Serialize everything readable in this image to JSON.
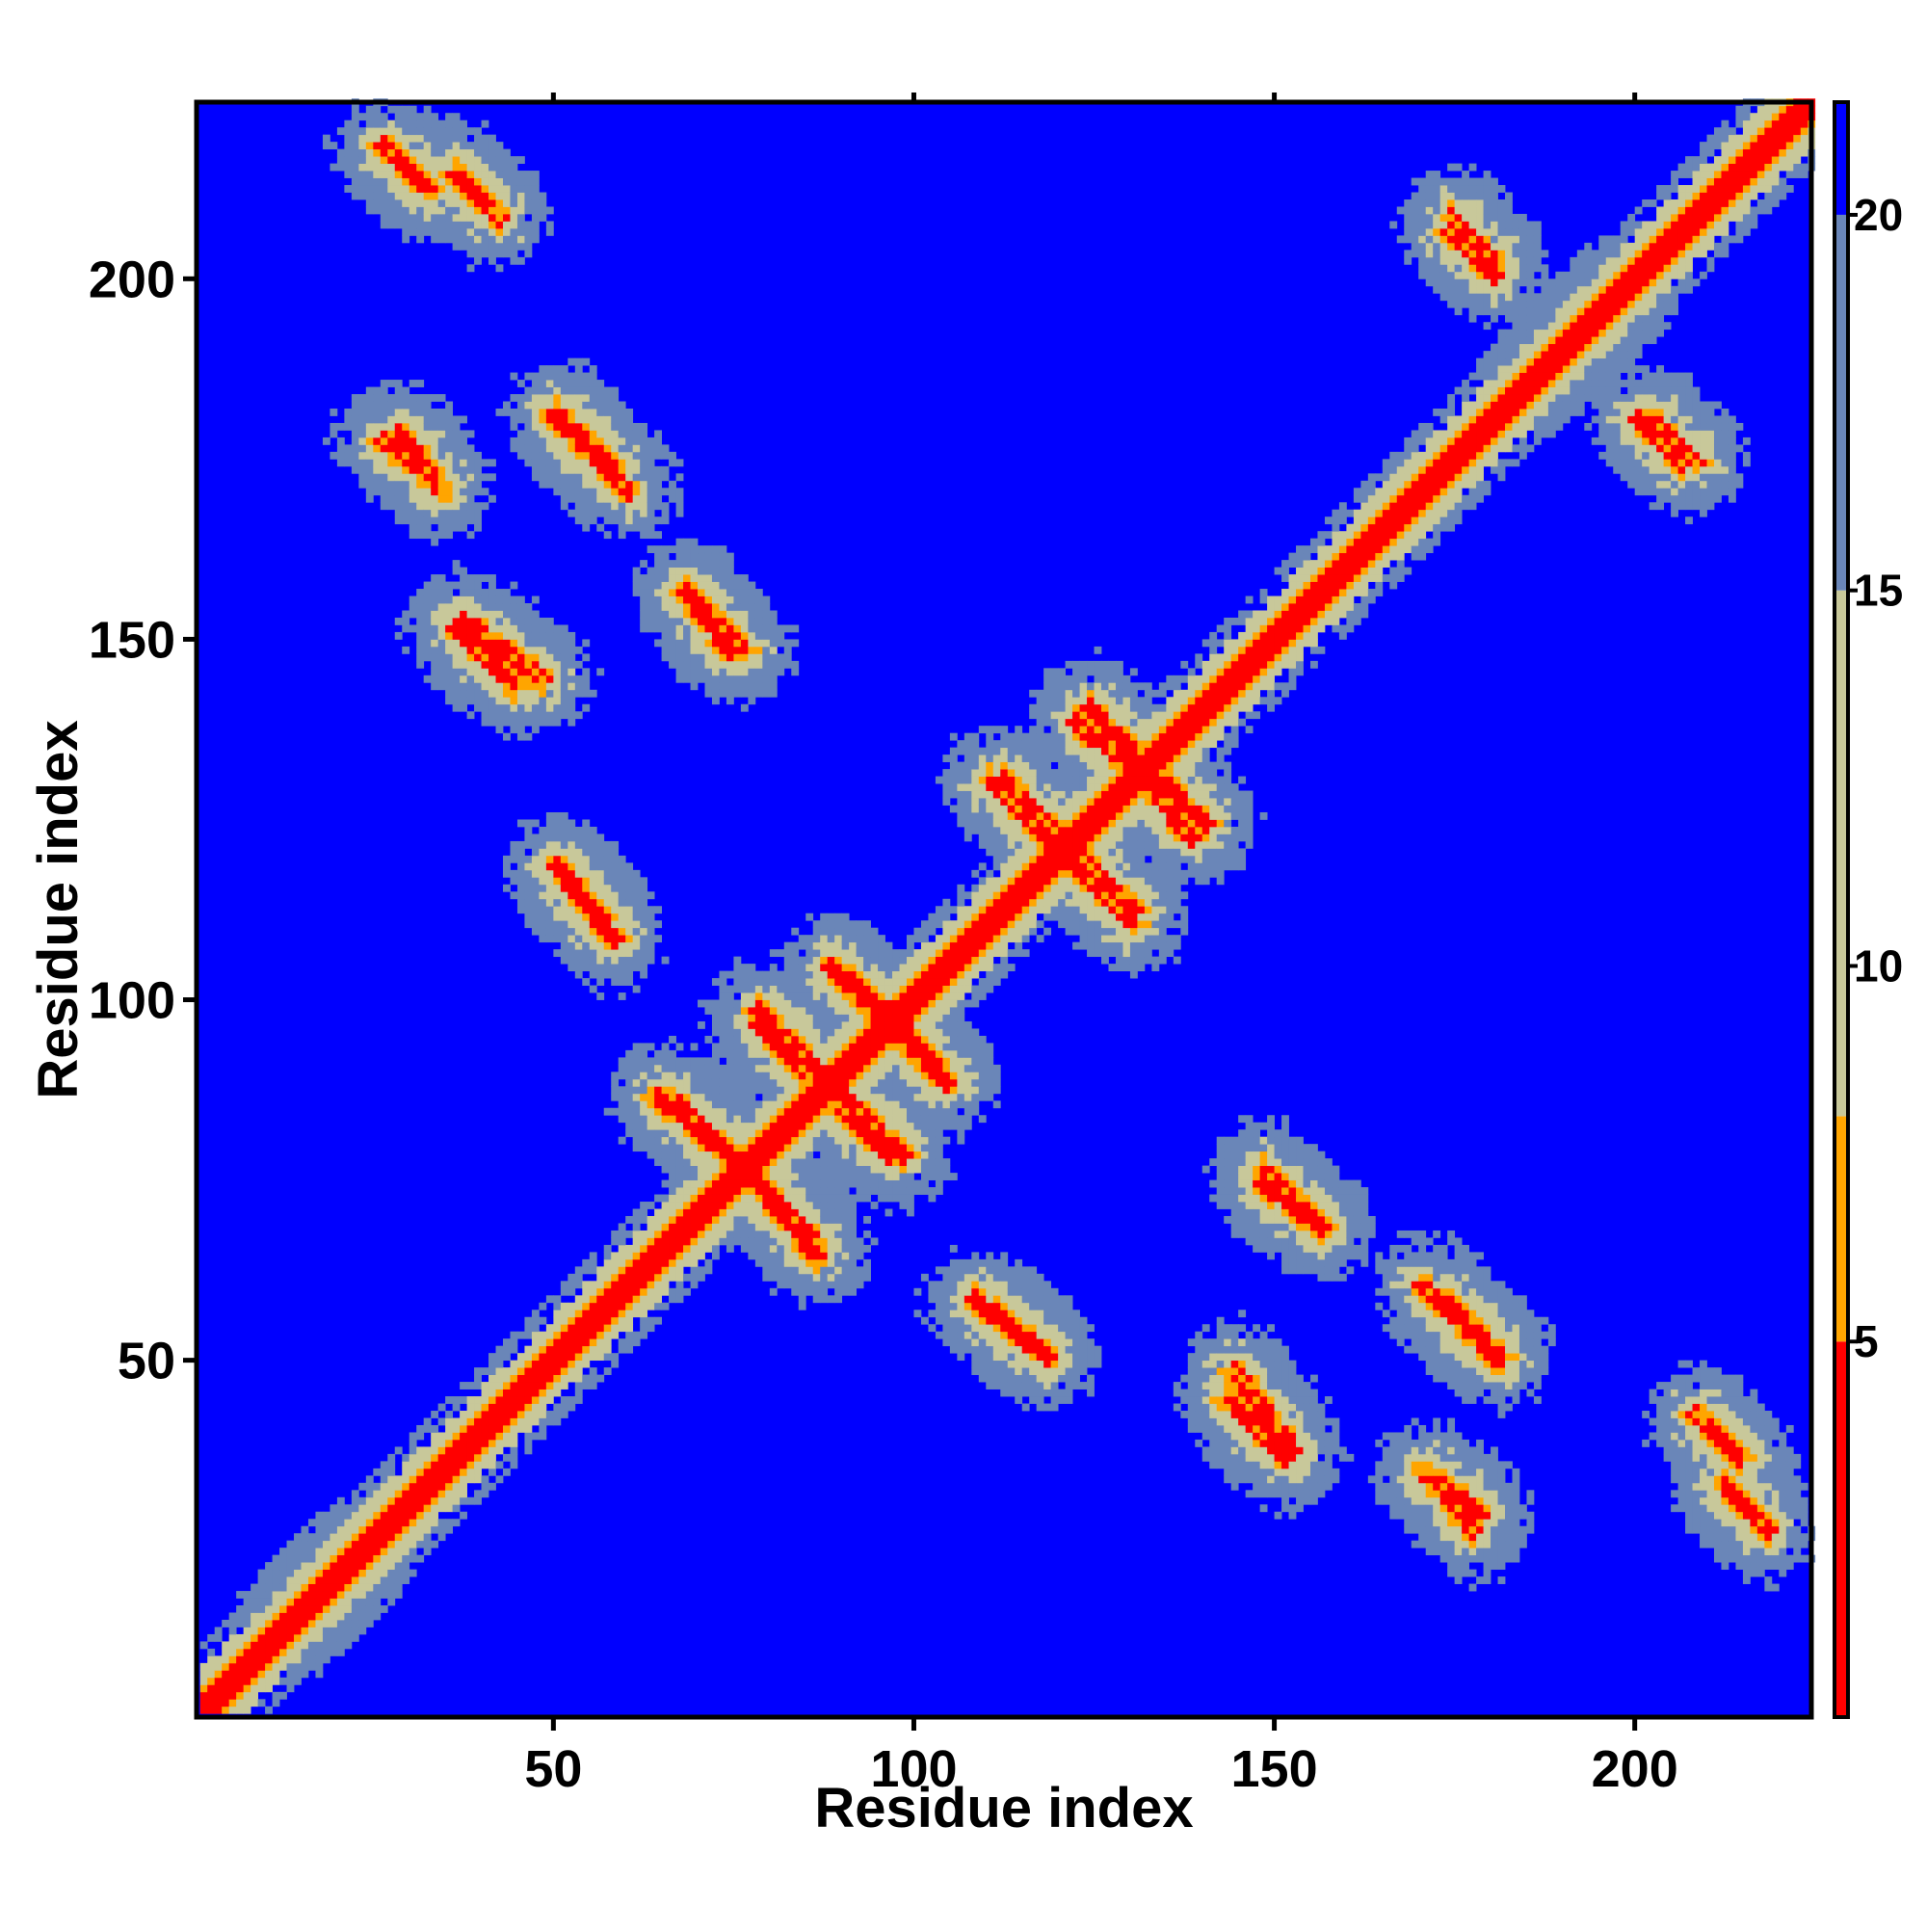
{
  "chart_data": {
    "type": "heatmap",
    "title": "",
    "xlabel": "Residue index",
    "ylabel": "Residue index",
    "n_residues": 224,
    "xlim": [
      1,
      224
    ],
    "ylim": [
      1,
      224
    ],
    "x_ticks": [
      50,
      100,
      150,
      200
    ],
    "y_ticks": [
      50,
      100,
      150,
      200
    ],
    "colorbar": {
      "range": [
        0,
        21.5
      ],
      "ticks": [
        5,
        10,
        15,
        20
      ],
      "placement": "right",
      "colors": {
        "contact": "#ff0000",
        "near": "#ffa500",
        "mid": "#c8c89a",
        "far": "#6a86b8",
        "background": "#0000ff"
      }
    },
    "diagonal": {
      "from": 1,
      "to": 224
    },
    "contact_bands": [
      {
        "a": [
          28,
          32
        ],
        "b": [
          212,
          216
        ],
        "kind": "anti"
      },
      {
        "a": [
          36,
          40
        ],
        "b": [
          210,
          214
        ],
        "kind": "anti"
      },
      {
        "a": [
          26,
          32
        ],
        "b": [
          173,
          177
        ],
        "kind": "anti"
      },
      {
        "a": [
          36,
          44
        ],
        "b": [
          143,
          151
        ],
        "kind": "anti"
      },
      {
        "a": [
          50,
          58
        ],
        "b": [
          173,
          181
        ],
        "kind": "anti"
      },
      {
        "a": [
          50,
          58
        ],
        "b": [
          108,
          118
        ],
        "kind": "anti"
      },
      {
        "a": [
          68,
          74
        ],
        "b": [
          148,
          156
        ],
        "kind": "anti"
      },
      {
        "a": [
          66,
          76
        ],
        "b": [
          76,
          86
        ],
        "kind": "anti"
      },
      {
        "a": [
          76,
          86
        ],
        "b": [
          64,
          76
        ],
        "kind": "anti"
      },
      {
        "a": [
          78,
          88
        ],
        "b": [
          88,
          98
        ],
        "kind": "anti"
      },
      {
        "a": [
          88,
          96
        ],
        "b": [
          78,
          86
        ],
        "kind": "anti"
      },
      {
        "a": [
          88,
          96
        ],
        "b": [
          96,
          104
        ],
        "kind": "anti"
      },
      {
        "a": [
          96,
          104
        ],
        "b": [
          88,
          98
        ],
        "kind": "anti"
      },
      {
        "a": [
          110,
          120
        ],
        "b": [
          120,
          130
        ],
        "kind": "anti"
      },
      {
        "a": [
          120,
          130
        ],
        "b": [
          112,
          122
        ],
        "kind": "anti"
      },
      {
        "a": [
          124,
          132
        ],
        "b": [
          132,
          140
        ],
        "kind": "anti"
      },
      {
        "a": [
          130,
          138
        ],
        "b": [
          122,
          132
        ],
        "kind": "anti"
      },
      {
        "a": [
          108,
          118
        ],
        "b": [
          50,
          58
        ],
        "kind": "anti"
      },
      {
        "a": [
          144,
          152
        ],
        "b": [
          37,
          48
        ],
        "kind": "anti"
      },
      {
        "a": [
          148,
          156
        ],
        "b": [
          68,
          76
        ],
        "kind": "anti"
      },
      {
        "a": [
          170,
          178
        ],
        "b": [
          28,
          34
        ],
        "kind": "anti"
      },
      {
        "a": [
          170,
          180
        ],
        "b": [
          50,
          60
        ],
        "kind": "anti"
      },
      {
        "a": [
          174,
          180
        ],
        "b": [
          200,
          206
        ],
        "kind": "anti"
      },
      {
        "a": [
          202,
          208
        ],
        "b": [
          174,
          180
        ],
        "kind": "anti"
      },
      {
        "a": [
          208,
          214
        ],
        "b": [
          36,
          42
        ],
        "kind": "anti"
      },
      {
        "a": [
          212,
          218
        ],
        "b": [
          26,
          32
        ],
        "kind": "anti"
      },
      {
        "a": [
          186,
          196
        ],
        "b": [
          186,
          196
        ],
        "kind": "par"
      },
      {
        "a": [
          190,
          198
        ],
        "b": [
          190,
          198
        ],
        "kind": "par"
      },
      {
        "a": [
          12,
          24
        ],
        "b": [
          12,
          24
        ],
        "kind": "par"
      }
    ]
  }
}
